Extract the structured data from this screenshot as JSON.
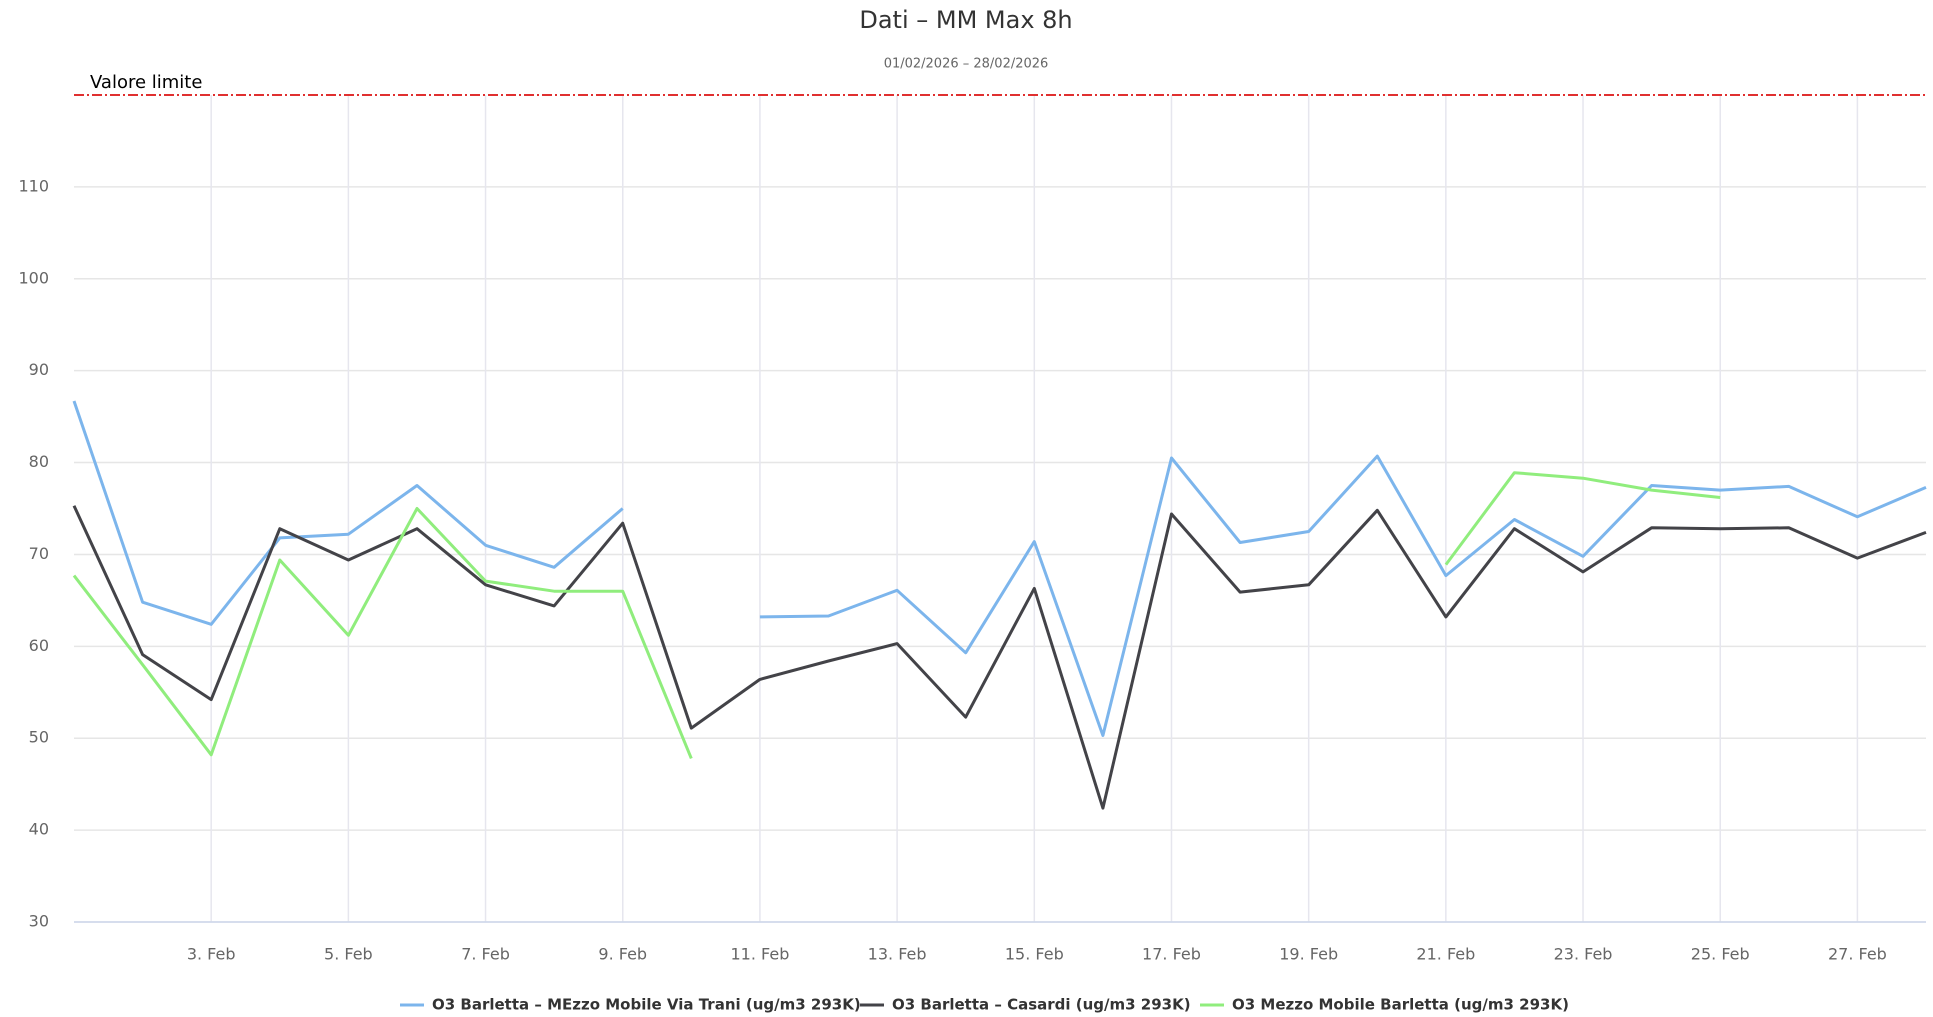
{
  "chart_data": {
    "type": "line",
    "title": "Dati – MM Max 8h",
    "subtitle": "01/02/2026 – 28/02/2026",
    "categories": [
      null,
      null,
      "3. Feb",
      null,
      "5. Feb",
      null,
      "7. Feb",
      null,
      "9. Feb",
      null,
      "11. Feb",
      null,
      "13. Feb",
      null,
      "15. Feb",
      null,
      "17. Feb",
      null,
      "19. Feb",
      null,
      "21. Feb",
      null,
      "23. Feb",
      null,
      "25. Feb",
      null,
      "27. Feb",
      null
    ],
    "series": [
      {
        "name": "O3 Barletta – MEzzo Mobile Via Trani (ug/m3 293K)",
        "color": "#7cb5ec",
        "values": [
          86.7,
          64.8,
          62.4,
          71.8,
          72.2,
          77.5,
          71.0,
          68.6,
          75.0,
          null,
          63.2,
          63.3,
          66.1,
          59.3,
          71.4,
          50.3,
          80.5,
          71.3,
          72.5,
          80.7,
          67.7,
          73.8,
          69.8,
          77.5,
          77.0,
          77.4,
          74.1,
          77.3
        ]
      },
      {
        "name": "O3 Barletta – Casardi (ug/m3 293K)",
        "color": "#434348",
        "values": [
          75.3,
          59.1,
          54.2,
          72.8,
          69.4,
          72.8,
          66.7,
          64.4,
          73.4,
          51.1,
          56.4,
          58.4,
          60.3,
          52.3,
          66.3,
          42.4,
          74.4,
          65.9,
          66.7,
          74.8,
          63.2,
          72.8,
          68.1,
          72.9,
          72.8,
          72.9,
          69.6,
          72.4
        ]
      },
      {
        "name": "O3 Mezzo Mobile Barletta (ug/m3 293K)",
        "color": "#90ed7d",
        "values": [
          67.7,
          58.0,
          48.2,
          69.4,
          61.2,
          75.0,
          67.1,
          66.0,
          66.0,
          47.8,
          null,
          null,
          null,
          null,
          null,
          null,
          null,
          null,
          null,
          null,
          68.9,
          78.9,
          78.3,
          77.0,
          76.2,
          null,
          null,
          null
        ]
      }
    ],
    "ylim": [
      30,
      120
    ],
    "yticks": [
      30,
      40,
      50,
      60,
      70,
      80,
      90,
      100,
      110
    ],
    "grid": true,
    "limit": {
      "label": "Valore limite",
      "value": 120,
      "color": "#e03030"
    },
    "legend": "bottom"
  }
}
